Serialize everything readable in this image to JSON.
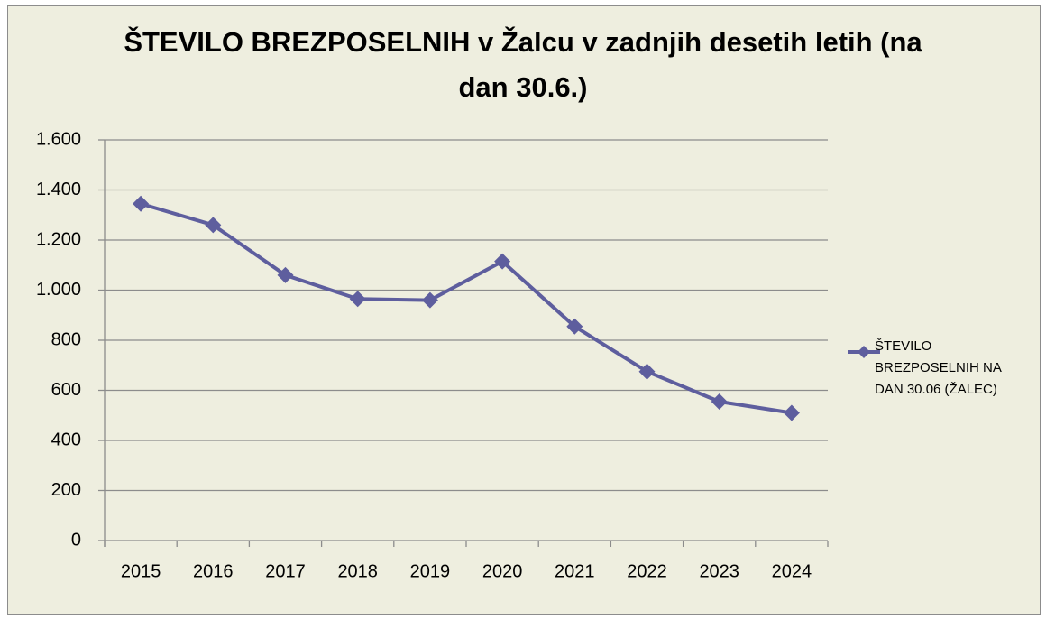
{
  "chart_data": {
    "type": "line",
    "title": "ŠTEVILO BREZPOSELNIH v Žalcu v zadnjih desetih letih (na dan 30.6.)",
    "categories": [
      "2015",
      "2016",
      "2017",
      "2018",
      "2019",
      "2020",
      "2021",
      "2022",
      "2023",
      "2024"
    ],
    "series": [
      {
        "name": "ŠTEVILO BREZPOSELNIH NA DAN 30.06 (ŽALEC)",
        "color": "#5e5e9e",
        "values": [
          1345,
          1260,
          1060,
          965,
          960,
          1115,
          855,
          675,
          555,
          510
        ]
      }
    ],
    "ylim": [
      0,
      1600
    ],
    "yticks": [
      0,
      200,
      400,
      600,
      800,
      {
        "value": 1000,
        "label": "1.000"
      },
      {
        "value": 1200,
        "label": "1.200"
      },
      {
        "value": 1400,
        "label": "1.400"
      },
      {
        "value": 1600,
        "label": "1.600"
      }
    ],
    "grid": true,
    "legend": "right"
  }
}
